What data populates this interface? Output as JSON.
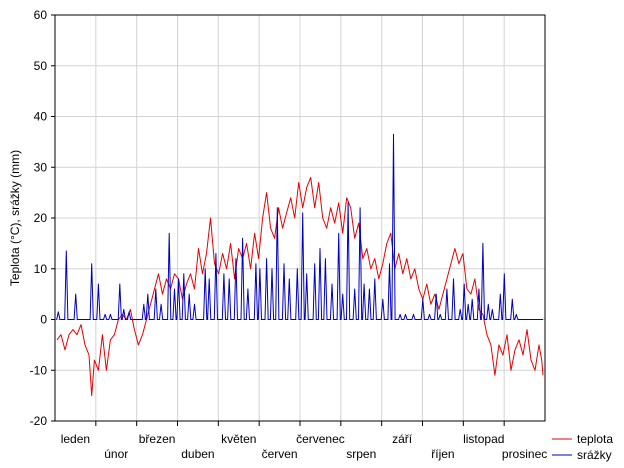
{
  "chart_data": {
    "type": "line",
    "title": "",
    "xlabel": "",
    "ylabel": "Teplota (°C), srážky (mm)",
    "ylim": [
      -20,
      60
    ],
    "yticks": [
      -20,
      -10,
      0,
      10,
      20,
      30,
      40,
      50,
      60
    ],
    "xlim": [
      1,
      365
    ],
    "grid": true,
    "legend_position": "bottom-right",
    "months": [
      {
        "label": "leden",
        "row": 1
      },
      {
        "label": "únor",
        "row": 2
      },
      {
        "label": "březen",
        "row": 1
      },
      {
        "label": "duben",
        "row": 2
      },
      {
        "label": "květen",
        "row": 1
      },
      {
        "label": "červen",
        "row": 2
      },
      {
        "label": "červenec",
        "row": 1
      },
      {
        "label": "srpen",
        "row": 2
      },
      {
        "label": "září",
        "row": 1
      },
      {
        "label": "říjen",
        "row": 2
      },
      {
        "label": "listopad",
        "row": 1
      },
      {
        "label": "prosinec",
        "row": 2
      }
    ],
    "series": [
      {
        "name": "teplota",
        "color": "#e60000",
        "style": "line",
        "points": [
          [
            1,
            -4
          ],
          [
            4,
            -3
          ],
          [
            7,
            -6
          ],
          [
            10,
            -3
          ],
          [
            13,
            -2
          ],
          [
            16,
            -3
          ],
          [
            19,
            -1
          ],
          [
            22,
            -5
          ],
          [
            25,
            -7
          ],
          [
            27,
            -15
          ],
          [
            29,
            -8
          ],
          [
            32,
            -10
          ],
          [
            35,
            -3
          ],
          [
            38,
            -10
          ],
          [
            41,
            -4
          ],
          [
            44,
            -3
          ],
          [
            47,
            0
          ],
          [
            50,
            1
          ],
          [
            53,
            0
          ],
          [
            56,
            2
          ],
          [
            59,
            -2
          ],
          [
            62,
            -5
          ],
          [
            65,
            -3
          ],
          [
            68,
            0
          ],
          [
            71,
            3
          ],
          [
            74,
            6
          ],
          [
            77,
            9
          ],
          [
            80,
            5
          ],
          [
            83,
            8
          ],
          [
            86,
            6
          ],
          [
            89,
            9
          ],
          [
            92,
            8
          ],
          [
            95,
            4
          ],
          [
            98,
            7
          ],
          [
            101,
            9
          ],
          [
            104,
            6
          ],
          [
            107,
            14
          ],
          [
            110,
            9
          ],
          [
            113,
            13
          ],
          [
            116,
            20
          ],
          [
            119,
            11
          ],
          [
            122,
            9
          ],
          [
            125,
            13
          ],
          [
            128,
            10
          ],
          [
            131,
            15
          ],
          [
            134,
            8
          ],
          [
            137,
            14
          ],
          [
            140,
            12
          ],
          [
            143,
            15
          ],
          [
            146,
            10
          ],
          [
            149,
            17
          ],
          [
            152,
            12
          ],
          [
            155,
            20
          ],
          [
            158,
            25
          ],
          [
            161,
            18
          ],
          [
            164,
            16
          ],
          [
            167,
            22
          ],
          [
            170,
            18
          ],
          [
            173,
            21
          ],
          [
            176,
            24
          ],
          [
            179,
            20
          ],
          [
            182,
            27
          ],
          [
            185,
            22
          ],
          [
            188,
            26
          ],
          [
            191,
            28
          ],
          [
            194,
            22
          ],
          [
            197,
            27
          ],
          [
            200,
            20
          ],
          [
            203,
            18
          ],
          [
            206,
            22
          ],
          [
            209,
            19
          ],
          [
            212,
            23
          ],
          [
            215,
            17
          ],
          [
            218,
            24
          ],
          [
            221,
            22
          ],
          [
            224,
            16
          ],
          [
            227,
            19
          ],
          [
            230,
            12
          ],
          [
            233,
            14
          ],
          [
            236,
            10
          ],
          [
            239,
            12
          ],
          [
            242,
            8
          ],
          [
            245,
            11
          ],
          [
            248,
            15
          ],
          [
            251,
            17
          ],
          [
            254,
            10
          ],
          [
            257,
            13
          ],
          [
            260,
            9
          ],
          [
            263,
            12
          ],
          [
            266,
            8
          ],
          [
            269,
            10
          ],
          [
            272,
            6
          ],
          [
            275,
            4
          ],
          [
            278,
            7
          ],
          [
            281,
            3
          ],
          [
            284,
            5
          ],
          [
            287,
            2
          ],
          [
            290,
            5
          ],
          [
            293,
            8
          ],
          [
            296,
            11
          ],
          [
            299,
            14
          ],
          [
            302,
            11
          ],
          [
            305,
            13
          ],
          [
            308,
            6
          ],
          [
            311,
            5
          ],
          [
            314,
            8
          ],
          [
            317,
            2
          ],
          [
            320,
            1
          ],
          [
            323,
            -3
          ],
          [
            326,
            -5
          ],
          [
            329,
            -11
          ],
          [
            332,
            -5
          ],
          [
            335,
            -7
          ],
          [
            338,
            -3
          ],
          [
            341,
            -10
          ],
          [
            344,
            -6
          ],
          [
            347,
            -4
          ],
          [
            350,
            -7
          ],
          [
            353,
            -2
          ],
          [
            356,
            -8
          ],
          [
            359,
            -10
          ],
          [
            362,
            -5
          ],
          [
            364,
            -8
          ],
          [
            365,
            -11
          ]
        ]
      },
      {
        "name": "srážky",
        "color": "#0000c0",
        "style": "spikes",
        "spikes": [
          [
            2,
            1.5
          ],
          [
            8,
            13.5
          ],
          [
            15,
            5
          ],
          [
            27,
            11
          ],
          [
            32,
            7
          ],
          [
            37,
            1
          ],
          [
            41,
            1
          ],
          [
            48,
            7
          ],
          [
            51,
            2
          ],
          [
            55,
            1.5
          ],
          [
            66,
            3
          ],
          [
            69,
            5
          ],
          [
            75,
            6
          ],
          [
            79,
            3
          ],
          [
            85,
            17
          ],
          [
            89,
            6
          ],
          [
            92,
            8
          ],
          [
            96,
            9
          ],
          [
            100,
            5
          ],
          [
            104,
            3
          ],
          [
            112,
            10
          ],
          [
            115,
            8
          ],
          [
            120,
            13
          ],
          [
            126,
            9
          ],
          [
            130,
            8
          ],
          [
            135,
            12
          ],
          [
            140,
            16
          ],
          [
            144,
            6
          ],
          [
            150,
            11
          ],
          [
            153,
            10
          ],
          [
            158,
            12
          ],
          [
            162,
            10
          ],
          [
            166,
            22
          ],
          [
            171,
            11
          ],
          [
            175,
            8
          ],
          [
            181,
            10
          ],
          [
            185,
            21
          ],
          [
            188,
            9
          ],
          [
            194,
            11
          ],
          [
            198,
            14
          ],
          [
            202,
            12
          ],
          [
            207,
            7
          ],
          [
            212,
            17
          ],
          [
            215,
            5
          ],
          [
            219,
            23
          ],
          [
            224,
            6
          ],
          [
            228,
            22
          ],
          [
            231,
            7
          ],
          [
            235,
            6
          ],
          [
            239,
            8
          ],
          [
            245,
            4
          ],
          [
            250,
            11
          ],
          [
            253,
            36.5
          ],
          [
            258,
            1
          ],
          [
            262,
            1
          ],
          [
            268,
            1
          ],
          [
            275,
            4
          ],
          [
            280,
            1
          ],
          [
            285,
            5
          ],
          [
            288,
            1
          ],
          [
            293,
            6
          ],
          [
            298,
            8
          ],
          [
            303,
            2
          ],
          [
            306,
            7
          ],
          [
            309,
            3
          ],
          [
            312,
            4
          ],
          [
            317,
            6
          ],
          [
            320,
            15
          ],
          [
            324,
            3
          ],
          [
            327,
            2
          ],
          [
            333,
            5
          ],
          [
            336,
            9
          ],
          [
            342,
            4
          ],
          [
            345,
            1
          ]
        ]
      }
    ]
  }
}
